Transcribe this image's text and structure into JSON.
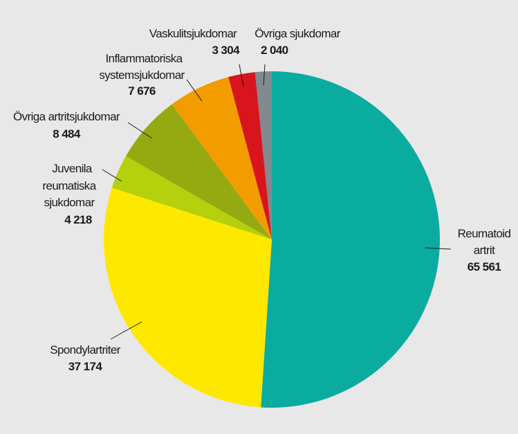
{
  "chart_data": {
    "type": "pie",
    "title": "",
    "start": "top",
    "direction": "clockwise",
    "slices": [
      {
        "label": "Reumatoid artrit",
        "value": 65561,
        "value_text": "65 561",
        "color": "#0aaca0"
      },
      {
        "label": "Spondylartriter",
        "value": 37174,
        "value_text": "37 174",
        "color": "#ffe800"
      },
      {
        "label": "Juvenila reumatiska sjukdomar",
        "value": 4218,
        "value_text": "4 218",
        "color": "#b5d00c"
      },
      {
        "label": "Övriga artritsjukdomar",
        "value": 8484,
        "value_text": "8 484",
        "color": "#95aa10"
      },
      {
        "label": "Inflammatoriska systemsjukdomar",
        "value": 7676,
        "value_text": "7 676",
        "color": "#f39c00"
      },
      {
        "label": "Vaskulitsjukdomar",
        "value": 3304,
        "value_text": "3 304",
        "color": "#d8151d"
      },
      {
        "label": "Övriga sjukdomar",
        "value": 2040,
        "value_text": "2 040",
        "color": "#808a8f"
      }
    ],
    "label_lines": {
      "reumatoid": [
        "Reumatoid",
        "artrit"
      ],
      "spondyl": [
        "Spondylartriter"
      ],
      "juvenila": [
        "Juvenila",
        "reumatiska",
        "sjukdomar"
      ],
      "ovriga_artrit": [
        "Övriga artritsjukdomar"
      ],
      "inflamm": [
        "Inflammatoriska",
        "systemsjukdomar"
      ],
      "vaskulit": [
        "Vaskulitsjukdomar"
      ],
      "ovriga": [
        "Övriga sjukdomar"
      ]
    }
  }
}
